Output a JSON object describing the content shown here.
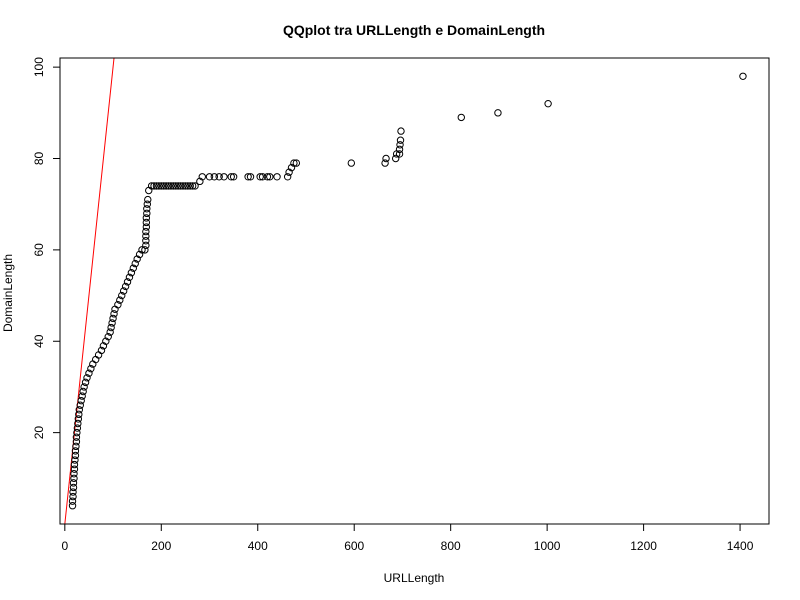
{
  "chart_data": {
    "type": "scatter",
    "title": "QQplot tra URLLength e DomainLength",
    "xlabel": "URLLength",
    "ylabel": "DomainLength",
    "xlim": [
      -10,
      1460
    ],
    "ylim": [
      0,
      102
    ],
    "xticks": [
      0,
      200,
      400,
      600,
      800,
      1000,
      1200,
      1400
    ],
    "yticks": [
      20,
      40,
      60,
      80,
      100
    ],
    "grid": false,
    "legend": "none",
    "point_color": "#000000",
    "reference_line": {
      "color": "#ff0000",
      "intercept": 0,
      "slope": 1
    },
    "series": [
      {
        "points": [
          [
            16,
            4
          ],
          [
            16,
            5
          ],
          [
            17,
            6
          ],
          [
            17,
            7
          ],
          [
            18,
            8
          ],
          [
            18,
            9
          ],
          [
            19,
            10
          ],
          [
            19,
            11
          ],
          [
            20,
            12
          ],
          [
            20,
            13
          ],
          [
            21,
            14
          ],
          [
            22,
            15
          ],
          [
            22,
            16
          ],
          [
            23,
            17
          ],
          [
            24,
            18
          ],
          [
            24,
            19
          ],
          [
            25,
            20
          ],
          [
            26,
            21
          ],
          [
            27,
            22
          ],
          [
            28,
            23
          ],
          [
            29,
            24
          ],
          [
            30,
            25
          ],
          [
            32,
            26
          ],
          [
            34,
            27
          ],
          [
            36,
            28
          ],
          [
            38,
            29
          ],
          [
            40,
            30
          ],
          [
            43,
            31
          ],
          [
            46,
            32
          ],
          [
            50,
            33
          ],
          [
            54,
            34
          ],
          [
            58,
            35
          ],
          [
            64,
            36
          ],
          [
            70,
            37
          ],
          [
            76,
            38
          ],
          [
            80,
            39
          ],
          [
            85,
            40
          ],
          [
            90,
            41
          ],
          [
            94,
            42
          ],
          [
            96,
            43
          ],
          [
            98,
            44
          ],
          [
            100,
            45
          ],
          [
            102,
            46
          ],
          [
            104,
            47
          ],
          [
            110,
            48
          ],
          [
            114,
            49
          ],
          [
            118,
            50
          ],
          [
            122,
            51
          ],
          [
            126,
            52
          ],
          [
            130,
            53
          ],
          [
            134,
            54
          ],
          [
            138,
            55
          ],
          [
            142,
            56
          ],
          [
            146,
            57
          ],
          [
            150,
            58
          ],
          [
            155,
            59
          ],
          [
            160,
            60
          ],
          [
            166,
            60
          ],
          [
            168,
            61
          ],
          [
            168,
            62
          ],
          [
            168,
            63
          ],
          [
            168,
            64
          ],
          [
            169,
            65
          ],
          [
            169,
            66
          ],
          [
            169,
            67
          ],
          [
            170,
            68
          ],
          [
            170,
            69
          ],
          [
            171,
            70
          ],
          [
            172,
            71
          ],
          [
            174,
            73
          ],
          [
            180,
            74
          ],
          [
            185,
            74
          ],
          [
            190,
            74
          ],
          [
            195,
            74
          ],
          [
            200,
            74
          ],
          [
            205,
            74
          ],
          [
            210,
            74
          ],
          [
            215,
            74
          ],
          [
            220,
            74
          ],
          [
            225,
            74
          ],
          [
            230,
            74
          ],
          [
            235,
            74
          ],
          [
            240,
            74
          ],
          [
            245,
            74
          ],
          [
            250,
            74
          ],
          [
            255,
            74
          ],
          [
            260,
            74
          ],
          [
            265,
            74
          ],
          [
            270,
            74
          ],
          [
            280,
            75
          ],
          [
            285,
            76
          ],
          [
            300,
            76
          ],
          [
            310,
            76
          ],
          [
            320,
            76
          ],
          [
            330,
            76
          ],
          [
            345,
            76
          ],
          [
            350,
            76
          ],
          [
            380,
            76
          ],
          [
            385,
            76
          ],
          [
            405,
            76
          ],
          [
            410,
            76
          ],
          [
            420,
            76
          ],
          [
            425,
            76
          ],
          [
            440,
            76
          ],
          [
            462,
            76
          ],
          [
            465,
            77
          ],
          [
            470,
            78
          ],
          [
            475,
            79
          ],
          [
            480,
            79
          ],
          [
            594,
            79
          ],
          [
            664,
            79
          ],
          [
            666,
            80
          ],
          [
            686,
            80
          ],
          [
            688,
            81
          ],
          [
            694,
            81
          ],
          [
            694,
            82
          ],
          [
            695,
            83
          ],
          [
            696,
            84
          ],
          [
            697,
            86
          ],
          [
            822,
            89
          ],
          [
            898,
            90
          ],
          [
            1002,
            92
          ],
          [
            1406,
            98
          ]
        ]
      }
    ]
  }
}
